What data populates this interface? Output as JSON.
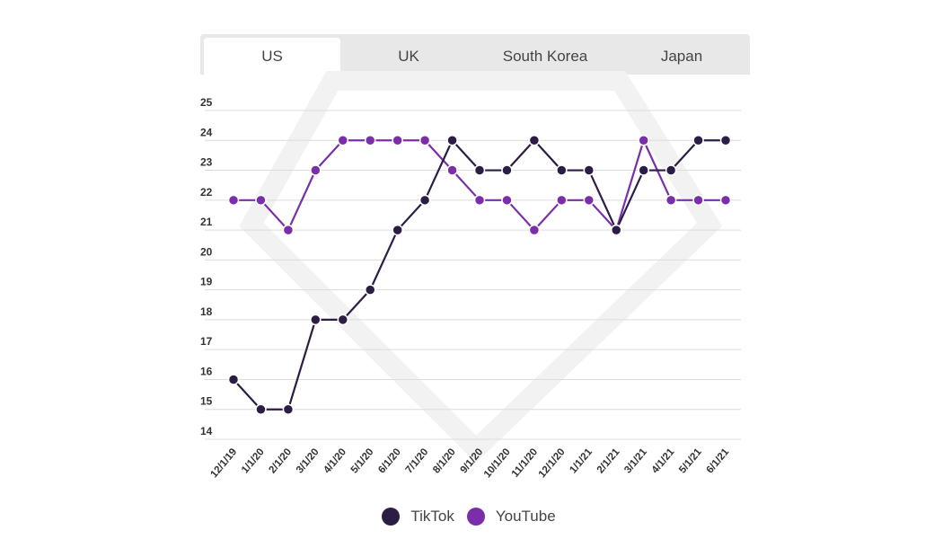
{
  "tabs": [
    {
      "label": "US",
      "active": true
    },
    {
      "label": "UK"
    },
    {
      "label": "South Korea"
    },
    {
      "label": "Japan"
    }
  ],
  "colors": {
    "TikTok": "#2c1d45",
    "YouTube": "#7a2fa8",
    "grid": "#dcdcdc"
  },
  "chart_data": {
    "type": "line",
    "x": [
      "12/1/19",
      "1/1/20",
      "2/1/20",
      "3/1/20",
      "4/1/20",
      "5/1/20",
      "6/1/20",
      "7/1/20",
      "8/1/20",
      "9/1/20",
      "10/1/20",
      "11/1/20",
      "12/1/20",
      "1/1/21",
      "2/1/21",
      "3/1/21",
      "4/1/21",
      "5/1/21",
      "6/1/21"
    ],
    "series": [
      {
        "name": "TikTok",
        "values": [
          16,
          15,
          15,
          18,
          18,
          19,
          21,
          22,
          24,
          23,
          23,
          24,
          23,
          23,
          21,
          23,
          23,
          24,
          24
        ]
      },
      {
        "name": "YouTube",
        "values": [
          22,
          22,
          21,
          23,
          24,
          24,
          24,
          24,
          23,
          22,
          22,
          21,
          22,
          22,
          21,
          24,
          22,
          22,
          22
        ]
      }
    ],
    "yticks": [
      "14",
      "15",
      "16",
      "17",
      "18",
      "19",
      "20",
      "21",
      "22",
      "23",
      "24",
      "25"
    ],
    "ylim": [
      14,
      25
    ],
    "grid": true,
    "legend": "bottom"
  }
}
